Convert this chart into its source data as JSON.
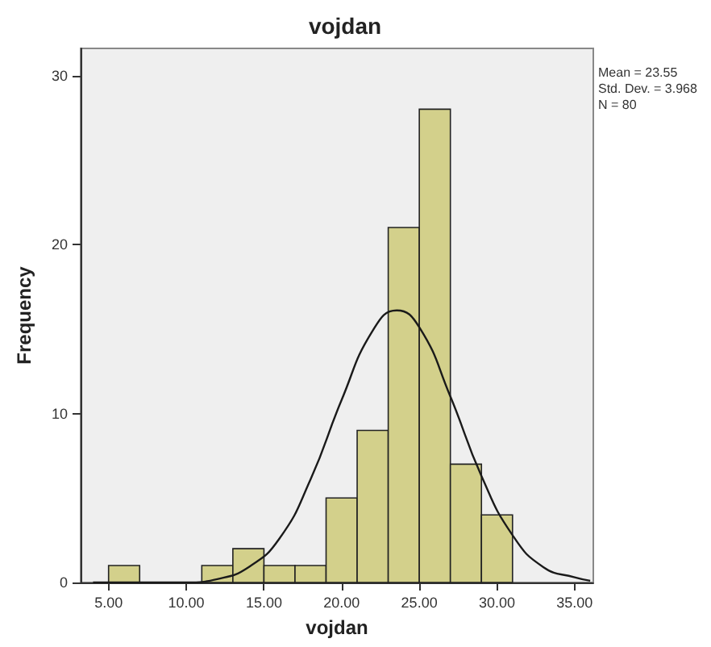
{
  "chart_data": {
    "type": "histogram",
    "title": "vojdan",
    "xlabel": "vojdan",
    "ylabel": "Frequency",
    "bins": [
      5,
      7,
      9,
      11,
      13,
      15,
      17,
      19,
      21,
      23,
      25,
      27,
      29,
      31
    ],
    "values": [
      1,
      0,
      0,
      1,
      2,
      1,
      1,
      5,
      9,
      21,
      28,
      7,
      4
    ],
    "color": "#d3d08b",
    "series": [
      {
        "type": "line",
        "color": "#1a1a1a",
        "x": [
          4,
          6,
          8,
          10,
          12,
          14,
          16,
          18,
          20,
          22,
          23.55,
          25,
          27,
          29,
          31,
          33,
          35,
          36
        ],
        "values": [
          0,
          0,
          0,
          0,
          0.2,
          0.9,
          2.6,
          6.1,
          10.8,
          14.9,
          16.1,
          15.1,
          11,
          6.3,
          2.8,
          0.9,
          0.3,
          0.1
        ]
      }
    ],
    "xlim": [
      3.2,
      36.2
    ],
    "ylim": [
      0,
      31.6
    ],
    "xticks": [
      {
        "value": 5,
        "label": "5.00"
      },
      {
        "value": 10,
        "label": "10.00"
      },
      {
        "value": 15,
        "label": "15.00"
      },
      {
        "value": 20,
        "label": "20.00"
      },
      {
        "value": 25,
        "label": "25.00"
      },
      {
        "value": 30,
        "label": "30.00"
      },
      {
        "value": 35,
        "label": "35.00"
      }
    ],
    "yticks": [
      0,
      10,
      20,
      30
    ],
    "grid": false,
    "marker": "none",
    "annotations": [
      "Mean = 23.55",
      "Std. Dev. = 3.968",
      "N = 80"
    ]
  }
}
